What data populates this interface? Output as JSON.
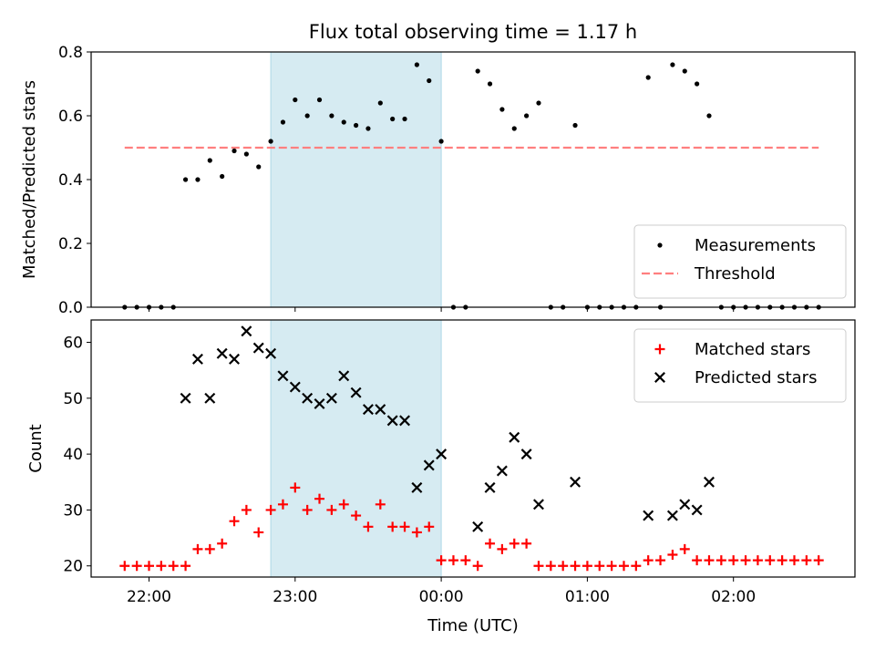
{
  "chart_data": {
    "title": "Flux total observing time = 1.17 h",
    "xlabel": "Time (UTC)",
    "x_tick_labels": [
      "22:00",
      "23:00",
      "00:00",
      "01:00",
      "02:00"
    ],
    "highlight_span": {
      "start": "22:50",
      "end": "00:00",
      "color": "#add8e6"
    },
    "panels": [
      {
        "type": "scatter",
        "ylabel": "Matched/Predicted stars",
        "ylim": [
          0,
          0.8
        ],
        "yticks": [
          "0.0",
          "0.2",
          "0.4",
          "0.6",
          "0.8"
        ],
        "legend_position": "lower right",
        "threshold": {
          "name": "Threshold",
          "value": 0.5,
          "x_start": "21:50",
          "x_end": "02:35",
          "color": "#ff7f7f"
        },
        "series": [
          {
            "name": "Measurements",
            "marker": "dot",
            "color": "#000000",
            "points": [
              [
                "21:50",
                0.0
              ],
              [
                "21:55",
                0.0
              ],
              [
                "22:00",
                0.0
              ],
              [
                "22:05",
                0.0
              ],
              [
                "22:10",
                0.0
              ],
              [
                "22:15",
                0.4
              ],
              [
                "22:20",
                0.4
              ],
              [
                "22:25",
                0.46
              ],
              [
                "22:30",
                0.41
              ],
              [
                "22:35",
                0.49
              ],
              [
                "22:40",
                0.48
              ],
              [
                "22:45",
                0.44
              ],
              [
                "22:50",
                0.52
              ],
              [
                "22:55",
                0.58
              ],
              [
                "23:00",
                0.65
              ],
              [
                "23:05",
                0.6
              ],
              [
                "23:10",
                0.65
              ],
              [
                "23:15",
                0.6
              ],
              [
                "23:20",
                0.58
              ],
              [
                "23:25",
                0.57
              ],
              [
                "23:30",
                0.56
              ],
              [
                "23:35",
                0.64
              ],
              [
                "23:40",
                0.59
              ],
              [
                "23:45",
                0.59
              ],
              [
                "23:50",
                0.76
              ],
              [
                "23:55",
                0.71
              ],
              [
                "00:00",
                0.52
              ],
              [
                "00:05",
                0.0
              ],
              [
                "00:10",
                0.0
              ],
              [
                "00:15",
                0.74
              ],
              [
                "00:20",
                0.7
              ],
              [
                "00:25",
                0.62
              ],
              [
                "00:30",
                0.56
              ],
              [
                "00:35",
                0.6
              ],
              [
                "00:40",
                0.64
              ],
              [
                "00:45",
                0.0
              ],
              [
                "00:50",
                0.0
              ],
              [
                "00:55",
                0.57
              ],
              [
                "01:00",
                0.0
              ],
              [
                "01:05",
                0.0
              ],
              [
                "01:10",
                0.0
              ],
              [
                "01:15",
                0.0
              ],
              [
                "01:20",
                0.0
              ],
              [
                "01:25",
                0.72
              ],
              [
                "01:30",
                0.0
              ],
              [
                "01:35",
                0.76
              ],
              [
                "01:40",
                0.74
              ],
              [
                "01:45",
                0.7
              ],
              [
                "01:50",
                0.6
              ],
              [
                "01:55",
                0.0
              ],
              [
                "02:00",
                0.0
              ],
              [
                "02:05",
                0.0
              ],
              [
                "02:10",
                0.0
              ],
              [
                "02:15",
                0.0
              ],
              [
                "02:20",
                0.0
              ],
              [
                "02:25",
                0.0
              ],
              [
                "02:30",
                0.0
              ],
              [
                "02:35",
                0.0
              ]
            ]
          }
        ]
      },
      {
        "type": "scatter",
        "ylabel": "Count",
        "ylim": [
          18,
          64
        ],
        "yticks": [
          "20",
          "30",
          "40",
          "50",
          "60"
        ],
        "legend_position": "upper right",
        "series": [
          {
            "name": "Matched stars",
            "marker": "plus",
            "color": "#ff0000",
            "points": [
              [
                "21:50",
                20
              ],
              [
                "21:55",
                20
              ],
              [
                "22:00",
                20
              ],
              [
                "22:05",
                20
              ],
              [
                "22:10",
                20
              ],
              [
                "22:15",
                20
              ],
              [
                "22:20",
                23
              ],
              [
                "22:25",
                23
              ],
              [
                "22:30",
                24
              ],
              [
                "22:35",
                28
              ],
              [
                "22:40",
                30
              ],
              [
                "22:45",
                26
              ],
              [
                "22:50",
                30
              ],
              [
                "22:55",
                31
              ],
              [
                "23:00",
                34
              ],
              [
                "23:05",
                30
              ],
              [
                "23:10",
                32
              ],
              [
                "23:15",
                30
              ],
              [
                "23:20",
                31
              ],
              [
                "23:25",
                29
              ],
              [
                "23:30",
                27
              ],
              [
                "23:35",
                31
              ],
              [
                "23:40",
                27
              ],
              [
                "23:45",
                27
              ],
              [
                "23:50",
                26
              ],
              [
                "23:55",
                27
              ],
              [
                "00:00",
                21
              ],
              [
                "00:05",
                21
              ],
              [
                "00:10",
                21
              ],
              [
                "00:15",
                20
              ],
              [
                "00:20",
                24
              ],
              [
                "00:25",
                23
              ],
              [
                "00:30",
                24
              ],
              [
                "00:35",
                24
              ],
              [
                "00:40",
                20
              ],
              [
                "00:45",
                20
              ],
              [
                "00:50",
                20
              ],
              [
                "00:55",
                20
              ],
              [
                "01:00",
                20
              ],
              [
                "01:05",
                20
              ],
              [
                "01:10",
                20
              ],
              [
                "01:15",
                20
              ],
              [
                "01:20",
                20
              ],
              [
                "01:25",
                21
              ],
              [
                "01:30",
                21
              ],
              [
                "01:35",
                22
              ],
              [
                "01:40",
                23
              ],
              [
                "01:45",
                21
              ],
              [
                "01:50",
                21
              ],
              [
                "01:55",
                21
              ],
              [
                "02:00",
                21
              ],
              [
                "02:05",
                21
              ],
              [
                "02:10",
                21
              ],
              [
                "02:15",
                21
              ],
              [
                "02:20",
                21
              ],
              [
                "02:25",
                21
              ],
              [
                "02:30",
                21
              ],
              [
                "02:35",
                21
              ]
            ]
          },
          {
            "name": "Predicted stars",
            "marker": "x",
            "color": "#000000",
            "points": [
              [
                "22:15",
                50
              ],
              [
                "22:20",
                57
              ],
              [
                "22:25",
                50
              ],
              [
                "22:30",
                58
              ],
              [
                "22:35",
                57
              ],
              [
                "22:40",
                62
              ],
              [
                "22:45",
                59
              ],
              [
                "22:50",
                58
              ],
              [
                "22:55",
                54
              ],
              [
                "23:00",
                52
              ],
              [
                "23:05",
                50
              ],
              [
                "23:10",
                49
              ],
              [
                "23:15",
                50
              ],
              [
                "23:20",
                54
              ],
              [
                "23:25",
                51
              ],
              [
                "23:30",
                48
              ],
              [
                "23:35",
                48
              ],
              [
                "23:40",
                46
              ],
              [
                "23:45",
                46
              ],
              [
                "23:50",
                34
              ],
              [
                "23:55",
                38
              ],
              [
                "00:00",
                40
              ],
              [
                "00:15",
                27
              ],
              [
                "00:20",
                34
              ],
              [
                "00:25",
                37
              ],
              [
                "00:30",
                43
              ],
              [
                "00:35",
                40
              ],
              [
                "00:40",
                31
              ],
              [
                "00:55",
                35
              ],
              [
                "01:25",
                29
              ],
              [
                "01:35",
                29
              ],
              [
                "01:40",
                31
              ],
              [
                "01:45",
                30
              ],
              [
                "01:50",
                35
              ]
            ]
          }
        ]
      }
    ]
  }
}
